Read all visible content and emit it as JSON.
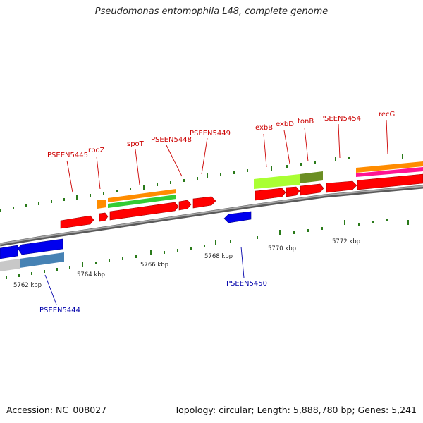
{
  "title": "Pseudomonas entomophila L48, complete genome",
  "footer": {
    "accession": "Accession: NC_008027",
    "summary": "Topology: circular; Length: 5,888,780 bp; Genes: 5,241"
  },
  "axis": {
    "ticks": [
      {
        "label": "5762 kbp"
      },
      {
        "label": "5764 kbp"
      },
      {
        "label": "5766 kbp"
      },
      {
        "label": "5768 kbp"
      },
      {
        "label": "5770 kbp"
      },
      {
        "label": "5772 kbp"
      }
    ]
  },
  "gene_labels_top": [
    {
      "name": "PSEEN5445"
    },
    {
      "name": "rpoZ"
    },
    {
      "name": "spoT"
    },
    {
      "name": "PSEEN5448"
    },
    {
      "name": "PSEEN5449"
    },
    {
      "name": "exbB"
    },
    {
      "name": "exbD"
    },
    {
      "name": "tonB"
    },
    {
      "name": "PSEEN5454"
    },
    {
      "name": "recG"
    }
  ],
  "gene_labels_bottom": [
    {
      "name": "PSEEN5450"
    },
    {
      "name": "PSEEN5444"
    }
  ],
  "colors": {
    "forward_gene": "#ff0000",
    "reverse_gene": "#0000ee",
    "label_forward": "#cc0000",
    "label_reverse": "#0000aa",
    "backbone": "#888888",
    "tick_marks": "#2a7a1a"
  }
}
